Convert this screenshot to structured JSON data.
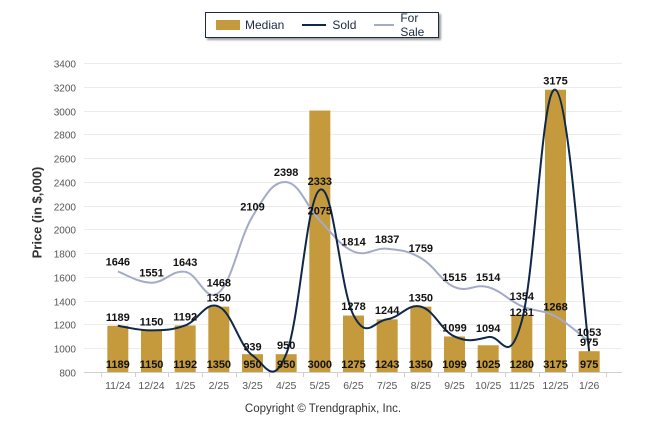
{
  "chart_data": {
    "type": "bar",
    "title": "",
    "xlabel": "",
    "ylabel": "Price (in $,000)",
    "ylim": [
      800,
      3400
    ],
    "yticks": [
      800,
      1000,
      1200,
      1400,
      1600,
      1800,
      2000,
      2200,
      2400,
      2600,
      2800,
      3000,
      3200,
      3400
    ],
    "grid": true,
    "legend_position": "top-center",
    "categories": [
      "11/24",
      "12/24",
      "1/25",
      "2/25",
      "3/25",
      "4/25",
      "5/25",
      "6/25",
      "7/25",
      "8/25",
      "9/25",
      "10/25",
      "11/25",
      "12/25",
      "1/26"
    ],
    "series": [
      {
        "name": "Median",
        "kind": "bar",
        "color": "#c49a3c",
        "values": [
          1189,
          1150,
          1192,
          1350,
          950,
          950,
          3000,
          1275,
          1243,
          1350,
          1099,
          1025,
          1280,
          3175,
          975
        ]
      },
      {
        "name": "Sold",
        "kind": "line",
        "color": "#0f2748",
        "values": [
          1189,
          1150,
          1192,
          1350,
          939,
          950,
          2333,
          1278,
          1244,
          1350,
          1099,
          1094,
          1231,
          3175,
          975
        ]
      },
      {
        "name": "For Sale",
        "kind": "line",
        "color": "#a3abc8",
        "values": [
          1646,
          1551,
          1643,
          1468,
          2109,
          2398,
          2075,
          1814,
          1837,
          1759,
          1515,
          1514,
          1354,
          1268,
          1053
        ]
      }
    ]
  },
  "legend": {
    "median": "Median",
    "sold": "Sold",
    "for_sale": "For Sale"
  },
  "footer": {
    "copyright": "Copyright © Trendgraphix, Inc."
  }
}
